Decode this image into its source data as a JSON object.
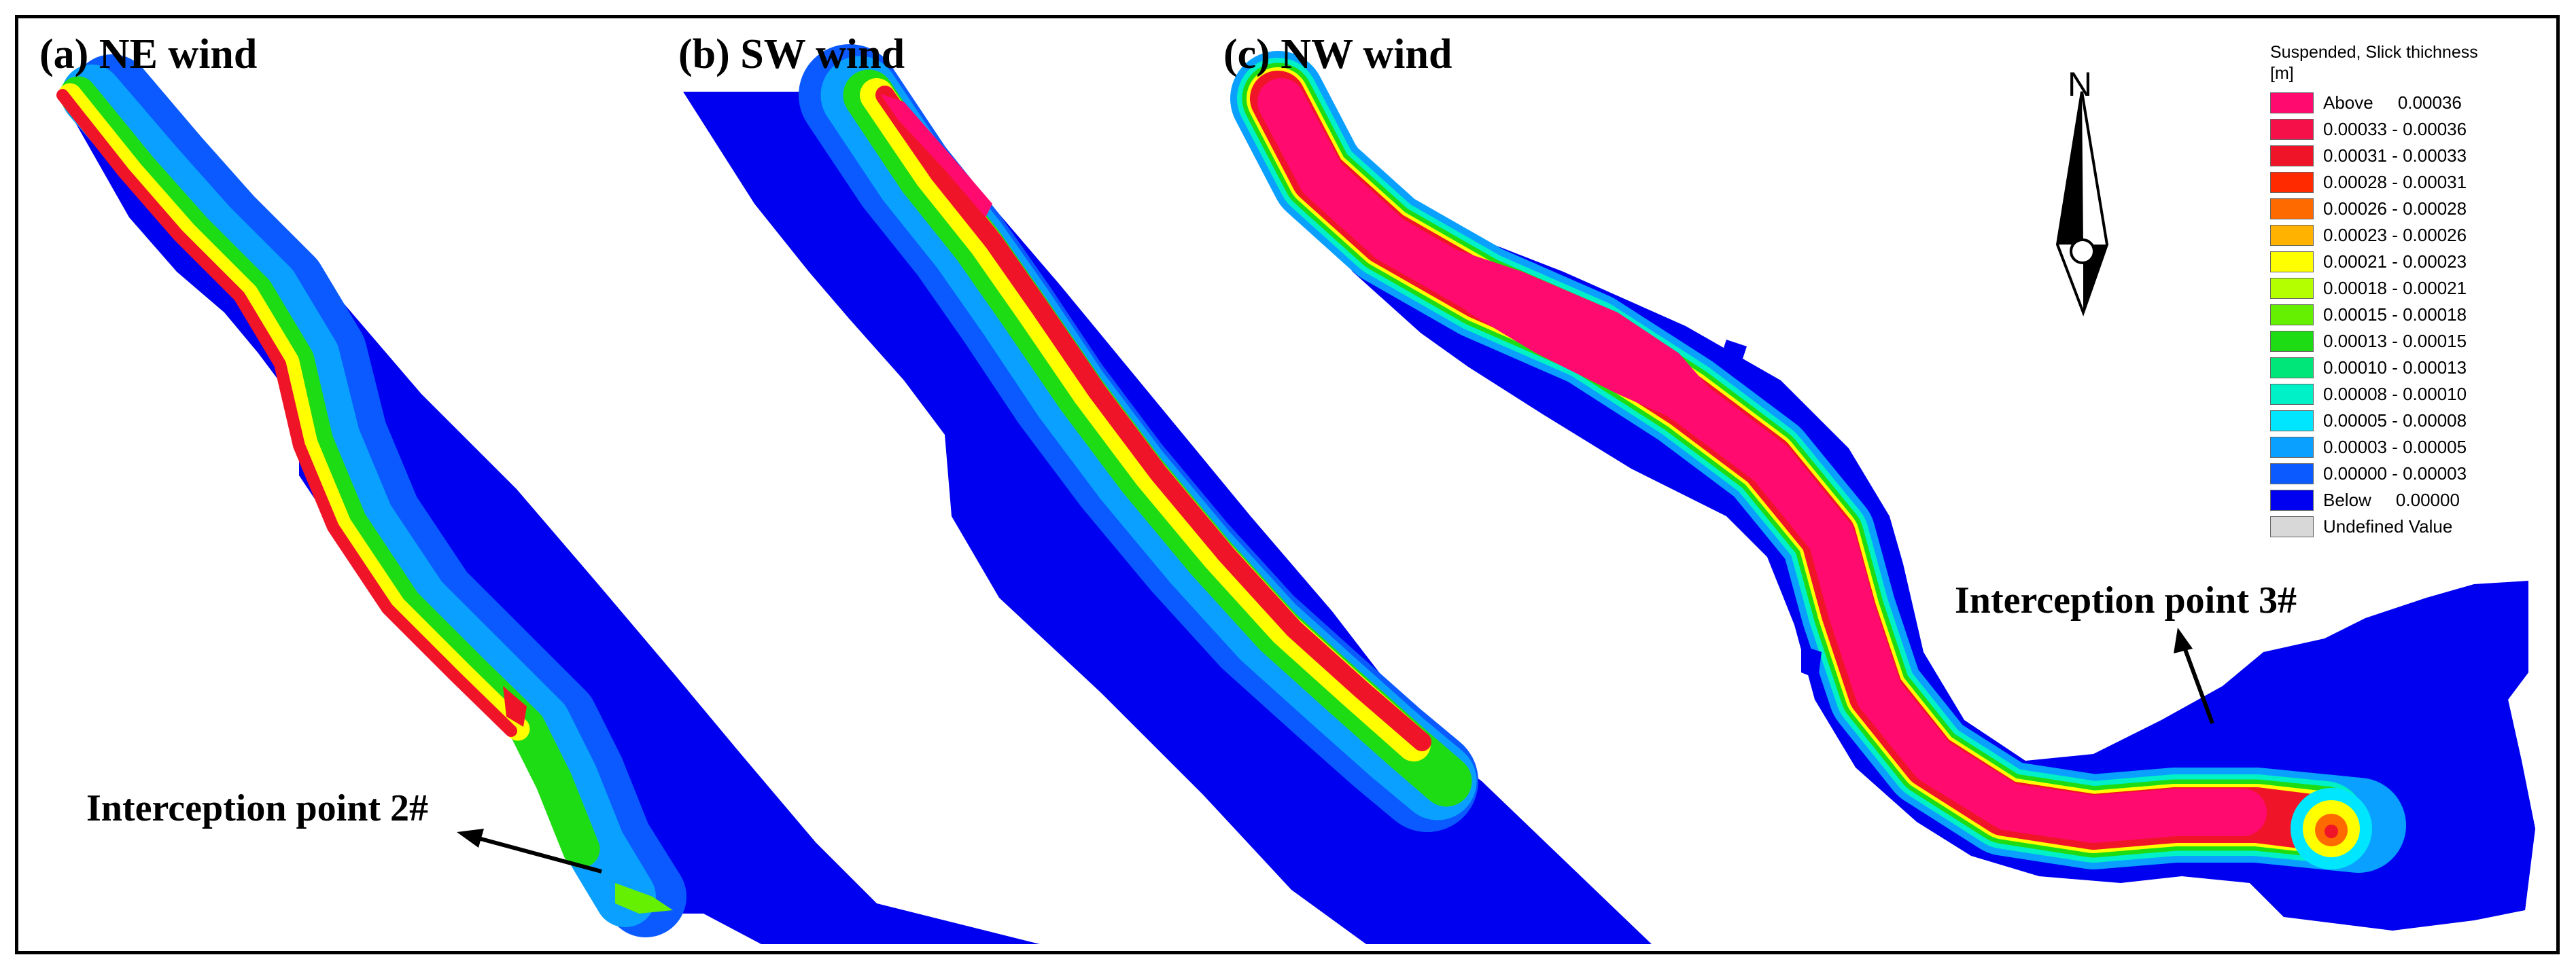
{
  "panels": [
    {
      "label": "(a)  NE wind"
    },
    {
      "label": "(b)  SW wind"
    },
    {
      "label": "(c)  NW wind"
    }
  ],
  "callouts": [
    {
      "text": "Interception point 2#"
    },
    {
      "text": "Interception point 3#"
    }
  ],
  "north_arrow": {
    "label": "N"
  },
  "legend": {
    "title": "Suspended, Slick thichness",
    "unit": "[m]",
    "items": [
      {
        "label": "Above     0.00036",
        "color": "#ff0a6e"
      },
      {
        "label": "0.00033 - 0.00036",
        "color": "#f5104a"
      },
      {
        "label": "0.00031 - 0.00033",
        "color": "#f01428"
      },
      {
        "label": "0.00028 - 0.00031",
        "color": "#ff2a00"
      },
      {
        "label": "0.00026 - 0.00028",
        "color": "#ff6a00"
      },
      {
        "label": "0.00023 - 0.00026",
        "color": "#ffb300"
      },
      {
        "label": "0.00021 - 0.00023",
        "color": "#ffff00"
      },
      {
        "label": "0.00018 - 0.00021",
        "color": "#b4ff00"
      },
      {
        "label": "0.00015 - 0.00018",
        "color": "#64f000"
      },
      {
        "label": "0.00013 - 0.00015",
        "color": "#1edc14"
      },
      {
        "label": "0.00010 - 0.00013",
        "color": "#00e678"
      },
      {
        "label": "0.00008 - 0.00010",
        "color": "#00f0c8"
      },
      {
        "label": "0.00005 - 0.00008",
        "color": "#00e6ff"
      },
      {
        "label": "0.00003 - 0.00005",
        "color": "#0aa0ff"
      },
      {
        "label": "0.00000 - 0.00003",
        "color": "#0a5aff"
      },
      {
        "label": "Below     0.00000",
        "color": "#0000f0"
      },
      {
        "label": "Undefined Value",
        "color": "#d8d8d8"
      }
    ]
  }
}
